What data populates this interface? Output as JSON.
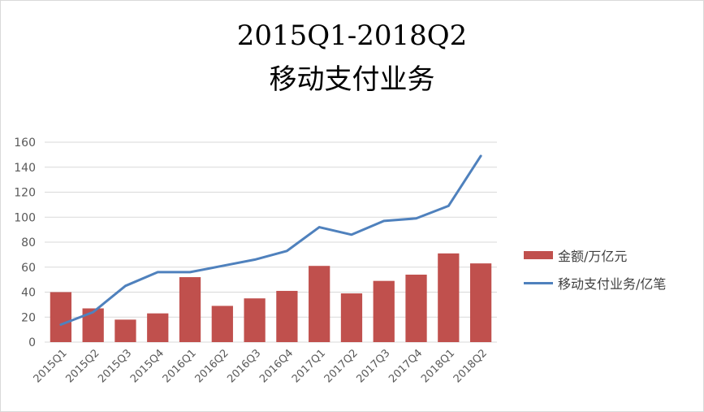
{
  "chart_data": {
    "type": "bar",
    "title_line1": "2015Q1-2018Q2",
    "title_line2": "移动支付业务",
    "categories": [
      "2015Q1",
      "2015Q2",
      "2015Q3",
      "2015Q4",
      "2016Q1",
      "2016Q2",
      "2016Q3",
      "2016Q4",
      "2017Q1",
      "2017Q2",
      "2017Q3",
      "2017Q4",
      "2018Q1",
      "2018Q2"
    ],
    "series": [
      {
        "name": "金额/万亿元",
        "kind": "bar",
        "color": "#c0504d",
        "values": [
          40,
          27,
          18,
          23,
          52,
          29,
          35,
          41,
          61,
          39,
          49,
          54,
          71,
          63
        ]
      },
      {
        "name": "移动支付业务/亿笔",
        "kind": "line",
        "color": "#4f81bd",
        "values": [
          14,
          24,
          45,
          56,
          56,
          61,
          66,
          73,
          92,
          86,
          97,
          99,
          109,
          149
        ]
      }
    ],
    "ylim": [
      0,
      160
    ],
    "yticks": [
      0,
      20,
      40,
      60,
      80,
      100,
      120,
      140,
      160
    ],
    "grid": true,
    "legend_position": "right"
  }
}
